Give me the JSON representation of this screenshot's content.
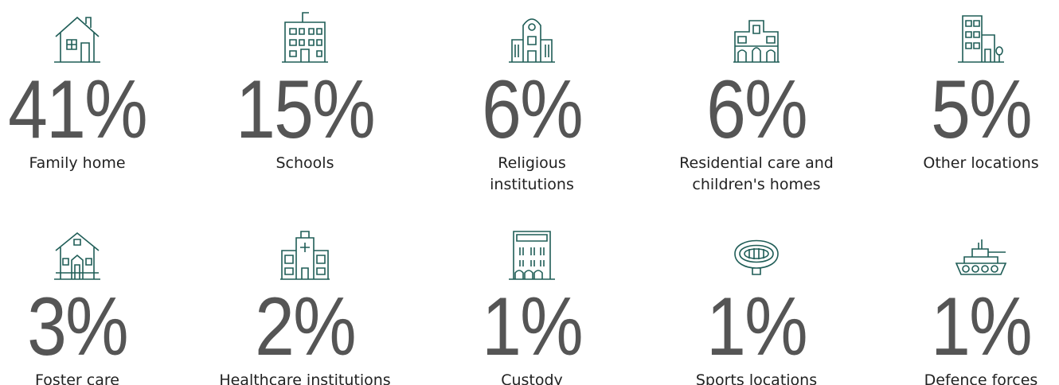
{
  "items": [
    {
      "percent": "41%",
      "label": "Family home"
    },
    {
      "percent": "15%",
      "label": "Schools"
    },
    {
      "percent": "6%",
      "label": "Religious institutions"
    },
    {
      "percent": "6%",
      "label": "Residential care and children's homes"
    },
    {
      "percent": "5%",
      "label": "Other locations"
    },
    {
      "percent": "3%",
      "label": "Foster care"
    },
    {
      "percent": "2%",
      "label": "Healthcare institutions"
    },
    {
      "percent": "1%",
      "label": "Custody"
    },
    {
      "percent": "1%",
      "label": "Sports locations"
    },
    {
      "percent": "1%",
      "label": "Defence forces"
    }
  ]
}
